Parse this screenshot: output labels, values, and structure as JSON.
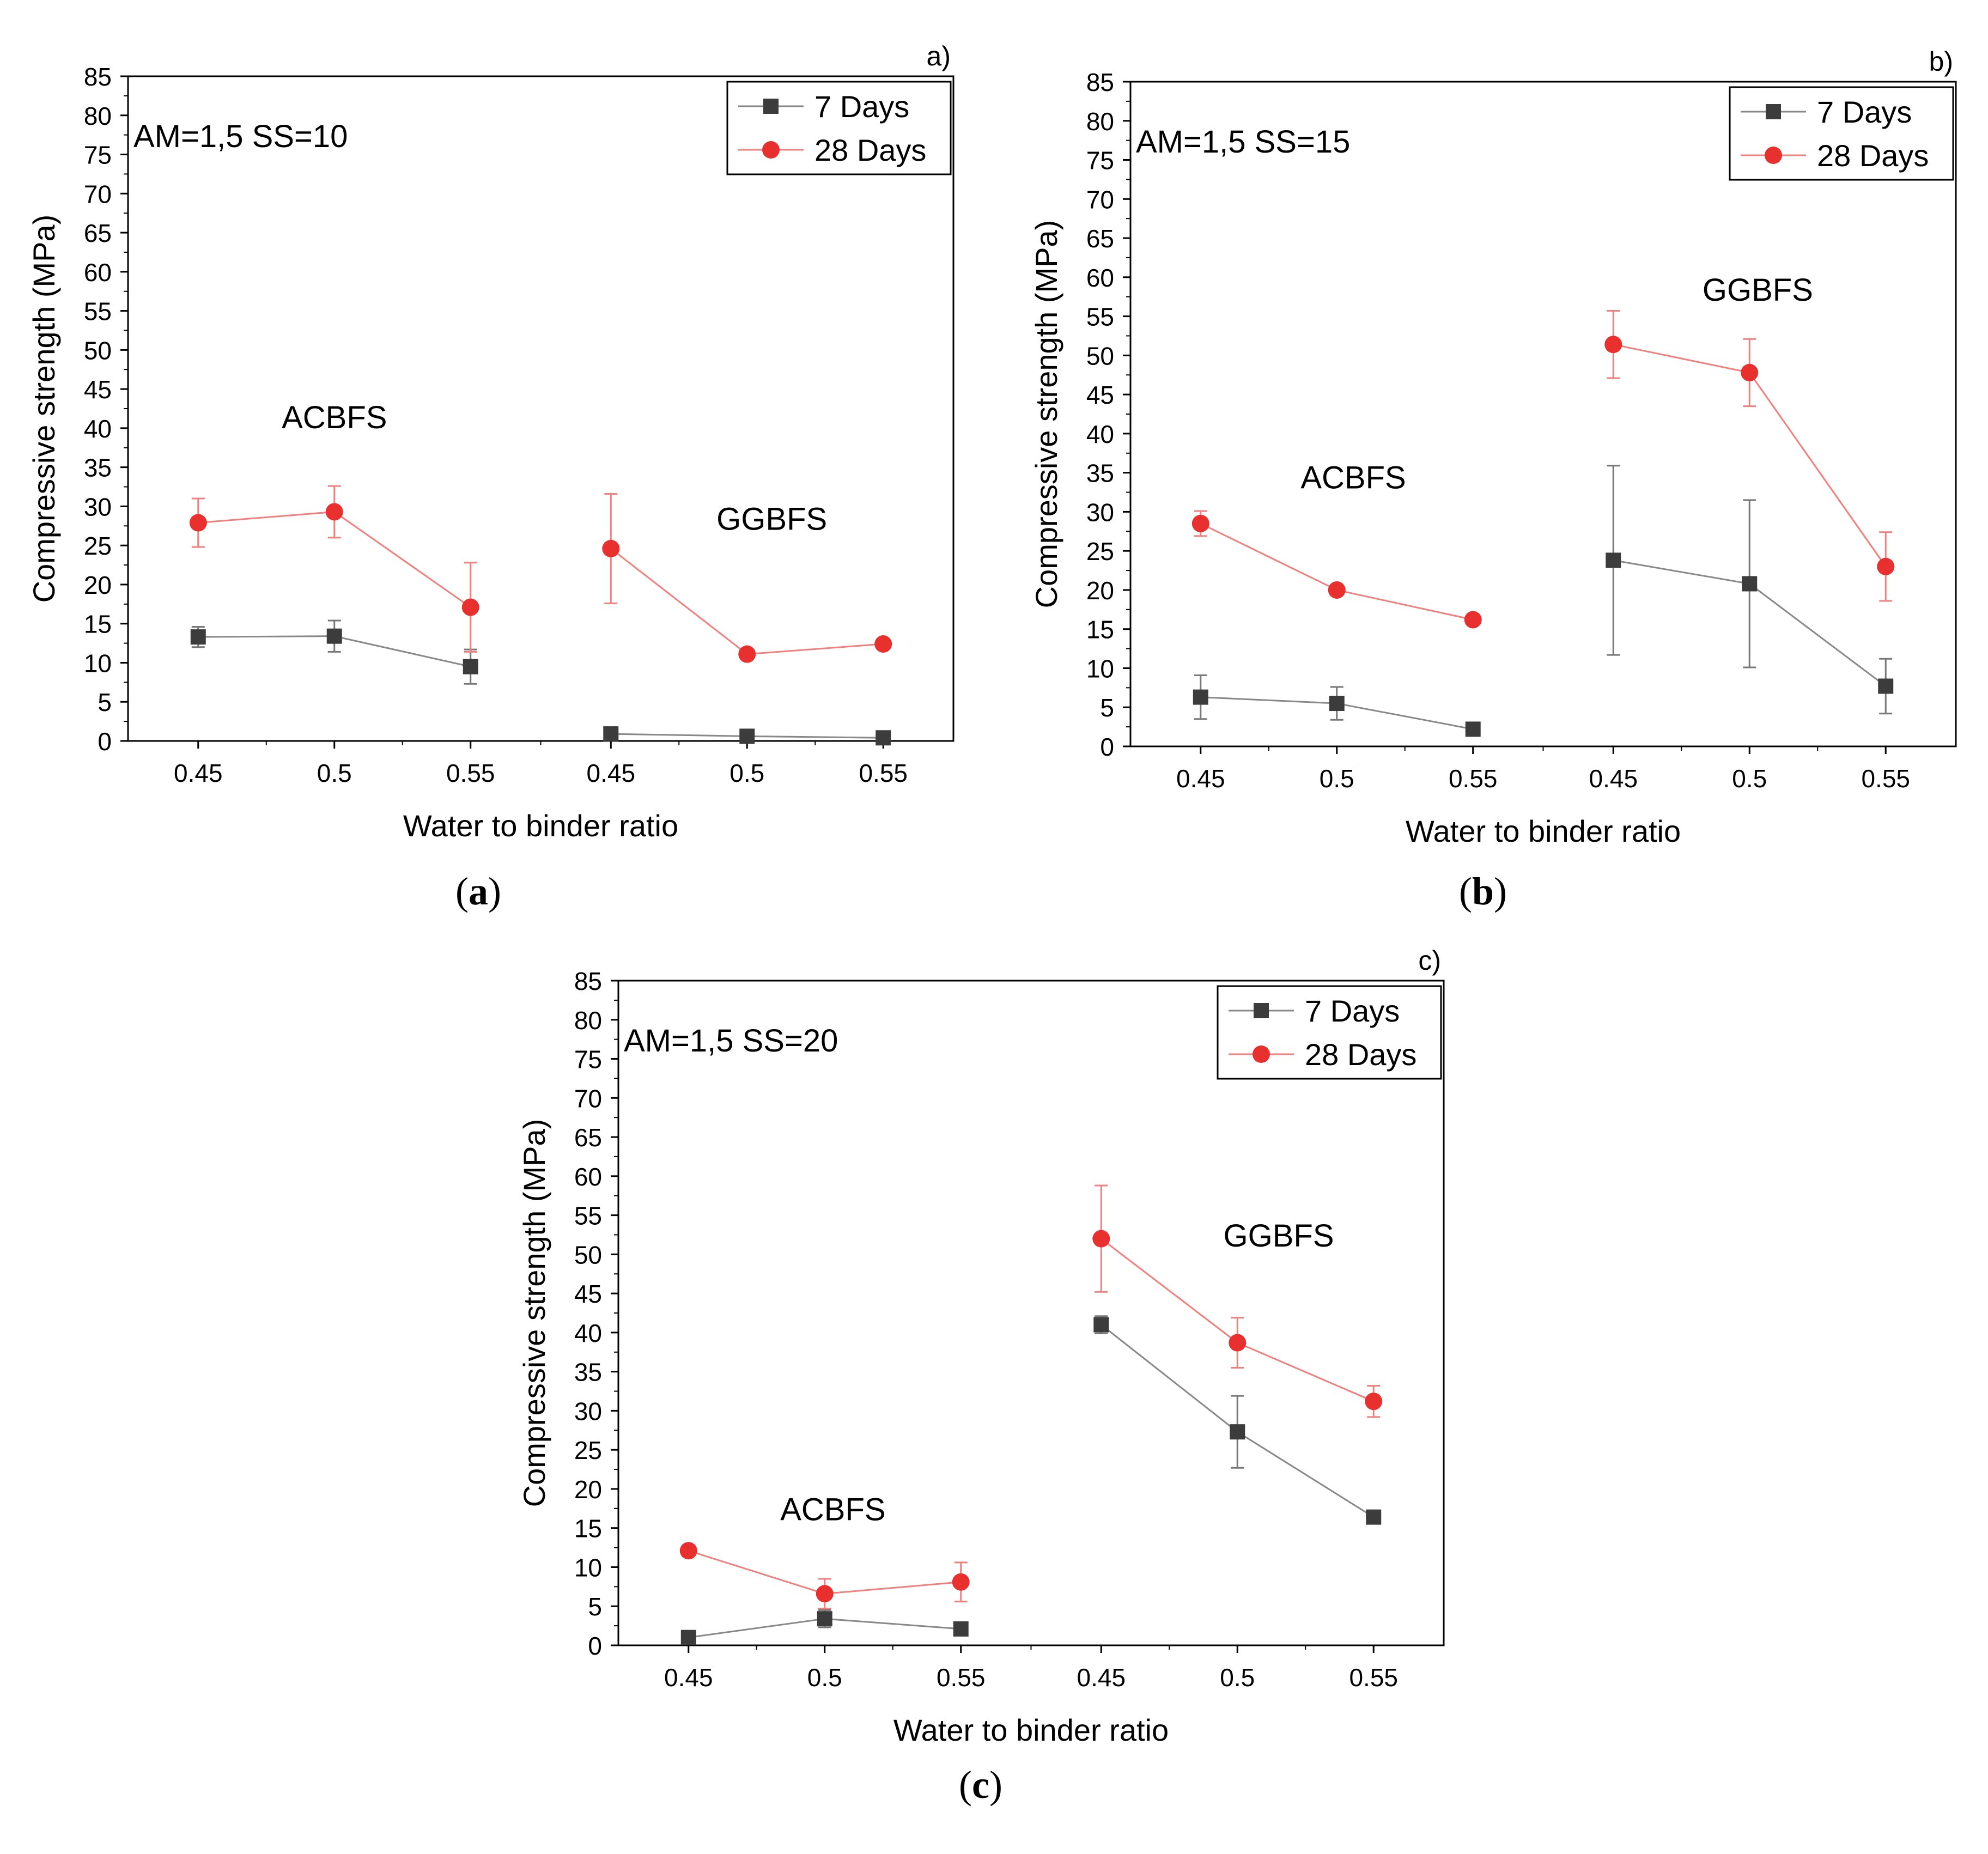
{
  "colors": {
    "series_7": "#3c3c3c",
    "series_28": "#e8302e",
    "annotation_red": "#e8302e",
    "axis": "#000000"
  },
  "captions": [
    {
      "open": "(",
      "letter": "a",
      "close": ")"
    },
    {
      "open": "(",
      "letter": "b",
      "close": ")"
    },
    {
      "open": "(",
      "letter": "c",
      "close": ")"
    }
  ],
  "chart_data": [
    {
      "type": "line",
      "panel_label": "a)",
      "annotation": "AM=1,5 SS=10",
      "group_labels": [
        "ACBFS",
        "GGBFS"
      ],
      "xlabel": "Water to binder ratio",
      "ylabel": "Compressive strength (MPa)",
      "ylim": [
        0,
        85
      ],
      "yticks": [
        0,
        5,
        10,
        15,
        20,
        25,
        30,
        35,
        40,
        45,
        50,
        55,
        60,
        65,
        70,
        75,
        80,
        85
      ],
      "categories": [
        "0.45",
        "0.5",
        "0.55",
        "0.45",
        "0.5",
        "0.55"
      ],
      "legend": [
        "7 Days",
        "28 Days"
      ],
      "series": [
        {
          "name": "7 Days",
          "segments": [
            [
              13.3,
              13.4,
              9.5
            ],
            [
              0.9,
              0.6,
              0.4
            ]
          ],
          "errors": [
            [
              1.3,
              2.0,
              2.2
            ],
            [
              0.2,
              0.2,
              0.2
            ]
          ]
        },
        {
          "name": "28 Days",
          "segments": [
            [
              27.9,
              29.3,
              17.1
            ],
            [
              24.6,
              11.1,
              12.4
            ]
          ],
          "errors": [
            [
              3.1,
              3.3,
              5.7
            ],
            [
              7.0,
              0.4,
              0.4
            ]
          ]
        }
      ]
    },
    {
      "type": "line",
      "panel_label": "b)",
      "annotation": "AM=1,5 SS=15",
      "group_labels": [
        "ACBFS",
        "GGBFS"
      ],
      "xlabel": "Water to binder ratio",
      "ylabel": "Compressive strength (MPa)",
      "ylim": [
        0,
        85
      ],
      "yticks": [
        0,
        5,
        10,
        15,
        20,
        25,
        30,
        35,
        40,
        45,
        50,
        55,
        60,
        65,
        70,
        75,
        80,
        85
      ],
      "categories": [
        "0.45",
        "0.5",
        "0.55",
        "0.45",
        "0.5",
        "0.55"
      ],
      "legend": [
        "7 Days",
        "28 Days"
      ],
      "series": [
        {
          "name": "7 Days",
          "segments": [
            [
              6.3,
              5.5,
              2.2
            ],
            [
              23.8,
              20.8,
              7.7
            ]
          ],
          "errors": [
            [
              2.8,
              2.1,
              0.8
            ],
            [
              12.1,
              10.7,
              3.5
            ]
          ]
        },
        {
          "name": "28 Days",
          "segments": [
            [
              28.5,
              20.0,
              16.2
            ],
            [
              51.4,
              47.8,
              23.0
            ]
          ],
          "errors": [
            [
              1.6,
              0.3,
              0.3
            ],
            [
              4.3,
              4.3,
              4.4
            ]
          ]
        }
      ]
    },
    {
      "type": "line",
      "panel_label": "c)",
      "annotation": "AM=1,5 SS=20",
      "group_labels": [
        "ACBFS",
        "GGBFS"
      ],
      "xlabel": "Water to binder ratio",
      "ylabel": "Compressive strength (MPa)",
      "ylim": [
        0,
        85
      ],
      "yticks": [
        0,
        5,
        10,
        15,
        20,
        25,
        30,
        35,
        40,
        45,
        50,
        55,
        60,
        65,
        70,
        75,
        80,
        85
      ],
      "categories": [
        "0.45",
        "0.5",
        "0.55",
        "0.45",
        "0.5",
        "0.55"
      ],
      "legend": [
        "7 Days",
        "28 Days"
      ],
      "series": [
        {
          "name": "7 Days",
          "segments": [
            [
              1.0,
              3.4,
              2.1
            ],
            [
              41.0,
              27.3,
              16.4
            ]
          ],
          "errors": [
            [
              0.2,
              1.1,
              0.2
            ],
            [
              1.1,
              4.6,
              0.3
            ]
          ]
        },
        {
          "name": "28 Days",
          "segments": [
            [
              12.1,
              6.6,
              8.1
            ],
            [
              52.0,
              38.7,
              31.2
            ]
          ],
          "errors": [
            [
              0.7,
              1.9,
              2.5
            ],
            [
              6.8,
              3.2,
              2.0
            ]
          ]
        }
      ]
    }
  ]
}
